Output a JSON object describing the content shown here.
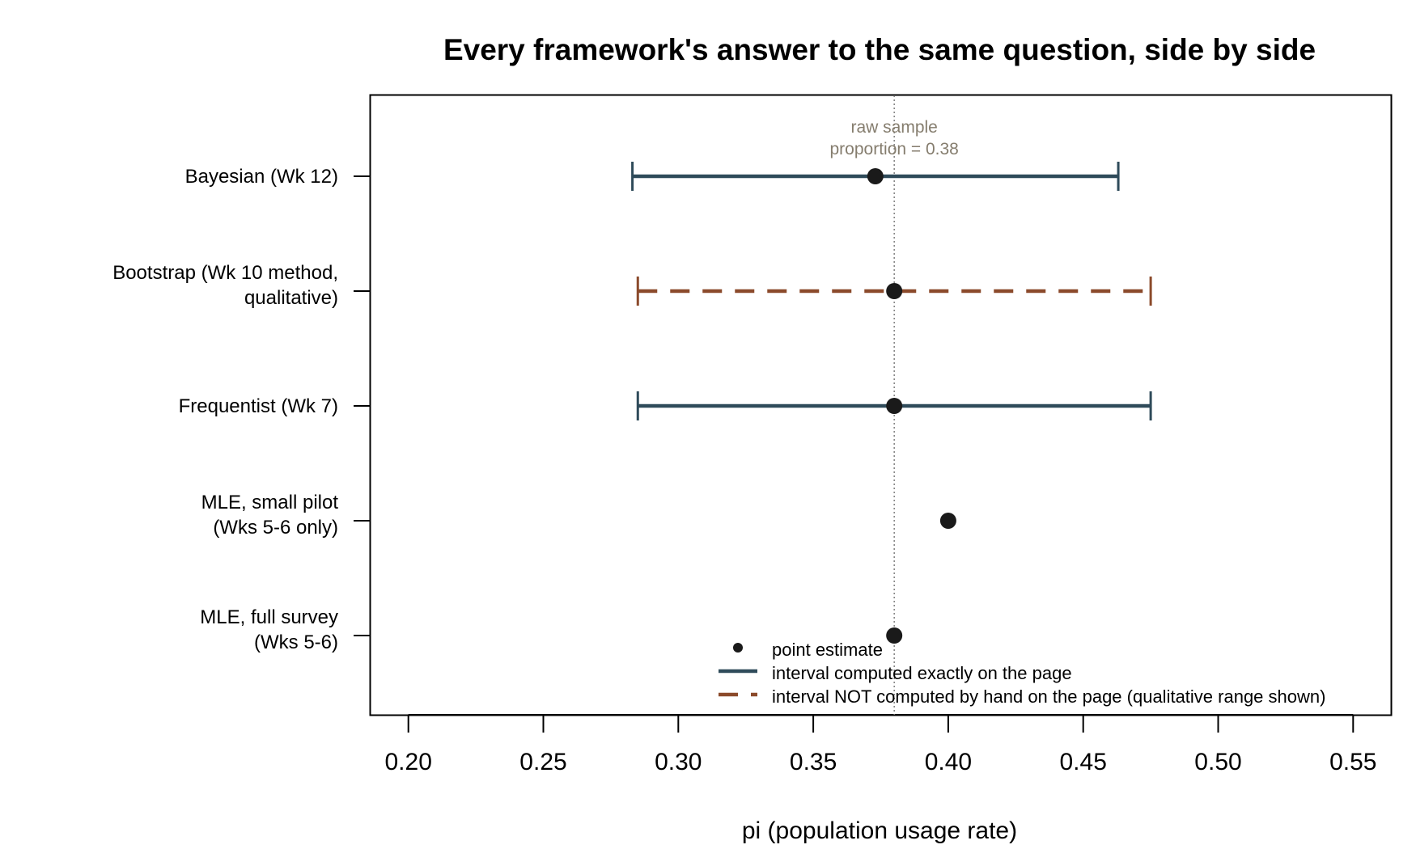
{
  "chart_data": {
    "type": "scatter",
    "title": "Every framework's answer to the same question, side by side",
    "xlabel": "pi (population usage rate)",
    "ylabel": "",
    "xlim": [
      0.186,
      0.564
    ],
    "x_ticks": [
      "0.20",
      "0.25",
      "0.30",
      "0.35",
      "0.40",
      "0.45",
      "0.50",
      "0.55"
    ],
    "x_tick_values": [
      0.2,
      0.25,
      0.3,
      0.35,
      0.4,
      0.45,
      0.5,
      0.55
    ],
    "grid": false,
    "legend_position": "bottom-right",
    "categories": [
      {
        "lines": [
          "Bayesian (Wk 12)"
        ],
        "estimate": 0.373,
        "lower": 0.283,
        "upper": 0.463,
        "interval": "exact"
      },
      {
        "lines": [
          "Bootstrap (Wk 10 method,",
          "qualitative)"
        ],
        "estimate": 0.38,
        "lower": 0.285,
        "upper": 0.475,
        "interval": "qualitative"
      },
      {
        "lines": [
          "Frequentist (Wk 7)"
        ],
        "estimate": 0.38,
        "lower": 0.285,
        "upper": 0.475,
        "interval": "exact"
      },
      {
        "lines": [
          "MLE, small pilot",
          "(Wks 5-6 only)"
        ],
        "estimate": 0.4,
        "lower": null,
        "upper": null,
        "interval": "none"
      },
      {
        "lines": [
          "MLE, full survey",
          "(Wks 5-6)"
        ],
        "estimate": 0.38,
        "lower": null,
        "upper": null,
        "interval": "none"
      }
    ],
    "reference_line": {
      "x": 0.38,
      "label_lines": [
        "raw sample",
        "proportion = 0.38"
      ]
    },
    "legend": [
      {
        "label": "point estimate",
        "kind": "point"
      },
      {
        "label": "interval computed exactly on the page",
        "kind": "solid"
      },
      {
        "label": "interval NOT computed by hand on the page (qualitative range shown)",
        "kind": "dashed"
      }
    ],
    "colors": {
      "exact": "#2F4B5A",
      "qualitative": "#8B4A2B",
      "point": "#1A1A1A",
      "reference": "#808080",
      "annotation": "#857D6E"
    }
  }
}
